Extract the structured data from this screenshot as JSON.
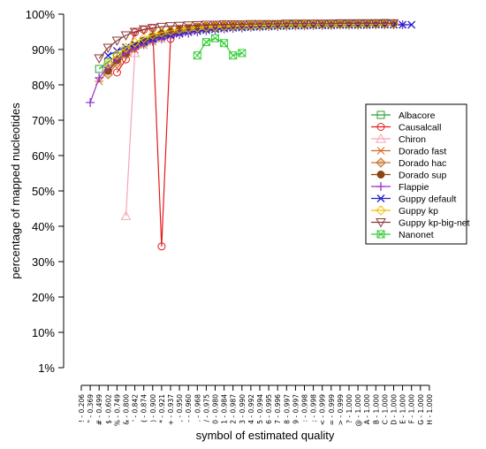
{
  "chart_data": {
    "type": "line",
    "xlabel": "symbol of estimated quality",
    "ylabel": "percentage of mapped nucleotides",
    "yticks": [
      "1%",
      "10%",
      "20%",
      "30%",
      "40%",
      "50%",
      "60%",
      "70%",
      "80%",
      "90%",
      "100%"
    ],
    "ylim": [
      0,
      100
    ],
    "x_categories": [
      "! - 0.206",
      "\" - 0.369",
      "# - 0.499",
      "$ - 0.602",
      "% - 0.749",
      "& - 0.800",
      "' - 0.842",
      "( - 0.874",
      ") - 0.900",
      "* - 0.921",
      "+ - 0.937",
      ", - 0.950",
      "- - 0.960",
      ". - 0.968",
      "/ - 0.975",
      "0 - 0.980",
      "1 - 0.984",
      "2 - 0.987",
      "3 - 0.990",
      "4 - 0.992",
      "5 - 0.994",
      "6 - 0.995",
      "7 - 0.996",
      "8 - 0.997",
      "9 - 0.997",
      ": - 0.998",
      "; - 0.998",
      "< - 0.999",
      "= - 0.999",
      "> - 0.999",
      "? - 1.000",
      "@ - 1.000",
      "A - 1.000",
      "B - 1.000",
      "C - 1.000",
      "D - 1.000",
      "E - 1.000",
      "F - 1.000",
      "G - 1.000",
      "H - 1.000"
    ],
    "legend_position": "right",
    "grid": false,
    "series": [
      {
        "name": "Albacore",
        "color": "#2ca02c",
        "marker": "square",
        "x": [
          3,
          4,
          5,
          6,
          7,
          8,
          9,
          10,
          11,
          12,
          13,
          14,
          15,
          16,
          17,
          18,
          19,
          20,
          21,
          22,
          23,
          24,
          25,
          26,
          27,
          28,
          29,
          30,
          31,
          32,
          33,
          34,
          35
        ],
        "values": [
          84.5,
          86.5,
          88,
          89.5,
          91,
          92,
          93,
          93.8,
          94.5,
          95,
          95.5,
          95.8,
          96,
          96.2,
          96.4,
          96.5,
          96.6,
          96.7,
          96.8,
          96.9,
          97,
          97,
          97.1,
          97.1,
          97.2,
          97.2,
          97.3,
          97.3,
          97.3,
          97.4,
          97.4,
          97.4,
          97.5
        ]
      },
      {
        "name": "Causalcall",
        "color": "#e41a1c",
        "marker": "circle",
        "x": [
          5,
          6,
          7,
          8,
          9,
          10,
          11,
          12,
          13,
          14,
          15,
          16,
          17,
          18,
          19,
          20,
          21,
          22,
          23,
          24,
          25,
          26,
          27,
          28,
          29,
          30,
          31,
          32,
          33,
          34,
          35
        ],
        "values": [
          83.5,
          87.2,
          94.8,
          95.6,
          96,
          34.3,
          93,
          95.9,
          96.2,
          96.5,
          96.7,
          96.8,
          96.9,
          97,
          97,
          97,
          97,
          97.1,
          97.1,
          97.1,
          97.1,
          97.2,
          97.2,
          97.2,
          97.2,
          97.2,
          97.3,
          97.3,
          97.3,
          97.3,
          97.3
        ]
      },
      {
        "name": "Chiron",
        "color": "#f4a6b4",
        "marker": "triangle-up",
        "x": [
          6,
          7
        ],
        "values": [
          42.9,
          89
        ]
      },
      {
        "name": "Dorado fast",
        "color": "#d2691e",
        "marker": "asterisk",
        "x": [
          3,
          4,
          5,
          6,
          7,
          8,
          9,
          10,
          11,
          12,
          13,
          14,
          15,
          16,
          17,
          18,
          19,
          20,
          21,
          22,
          23,
          24,
          25,
          26,
          27,
          28,
          29,
          30,
          31,
          32,
          33,
          34,
          35,
          36
        ],
        "values": [
          81,
          84,
          86.5,
          88.5,
          90,
          91.2,
          92.2,
          93,
          93.8,
          94.4,
          94.9,
          95.3,
          95.6,
          95.9,
          96.1,
          96.3,
          96.4,
          96.5,
          96.6,
          96.7,
          96.8,
          96.8,
          96.9,
          96.9,
          97,
          97,
          97,
          97.1,
          97.1,
          97.1,
          97.1,
          97.2,
          97.2,
          97.2
        ]
      },
      {
        "name": "Dorado hac",
        "color": "#c8742e",
        "marker": "diamond",
        "x": [
          4,
          5,
          6,
          7,
          8,
          9,
          10,
          11,
          12,
          13,
          14,
          15,
          16,
          17,
          18,
          19,
          20,
          21,
          22,
          23,
          24,
          25,
          26,
          27,
          28,
          29,
          30,
          31,
          32,
          33,
          34,
          35,
          36
        ],
        "values": [
          83,
          86,
          88.5,
          90.5,
          92,
          93.2,
          94.2,
          94.9,
          95.4,
          95.8,
          96.1,
          96.3,
          96.5,
          96.6,
          96.7,
          96.8,
          96.9,
          96.9,
          97,
          97,
          97,
          97.1,
          97.1,
          97.1,
          97.1,
          97.2,
          97.2,
          97.2,
          97.2,
          97.2,
          97.3,
          97.3,
          97.3
        ]
      },
      {
        "name": "Dorado sup",
        "color": "#8b4513",
        "marker": "circle-filled",
        "x": [
          4,
          5,
          6,
          7,
          8,
          9,
          10,
          11,
          12,
          13,
          14,
          15,
          16,
          17,
          18,
          19,
          20,
          21,
          22,
          23,
          24,
          25,
          26,
          27,
          28,
          29,
          30,
          31,
          32,
          33,
          34,
          35,
          36
        ],
        "values": [
          84,
          87,
          89,
          91,
          92.5,
          93.6,
          94.5,
          95.1,
          95.6,
          96,
          96.3,
          96.5,
          96.6,
          96.7,
          96.8,
          96.9,
          96.9,
          97,
          97,
          97,
          97.1,
          97.1,
          97.1,
          97.1,
          97.2,
          97.2,
          97.2,
          97.2,
          97.2,
          97.3,
          97.3,
          97.3,
          97.3
        ]
      },
      {
        "name": "Flappie",
        "color": "#9932cc",
        "marker": "plus",
        "x": [
          2,
          3,
          4,
          5,
          6,
          7,
          8,
          9,
          10,
          11,
          12,
          13,
          14,
          15,
          16,
          17,
          18,
          19,
          20,
          21,
          22,
          23,
          24,
          25,
          26,
          27,
          28,
          29,
          30,
          31,
          32,
          33,
          34,
          35,
          36,
          37
        ],
        "values": [
          75,
          82,
          85,
          87.3,
          89,
          90.3,
          91.4,
          92.3,
          93,
          93.6,
          94.2,
          94.6,
          95,
          95.3,
          95.6,
          95.8,
          96,
          96.1,
          96.3,
          96.4,
          96.5,
          96.5,
          96.6,
          96.7,
          96.7,
          96.8,
          96.8,
          96.8,
          96.9,
          96.9,
          96.9,
          97,
          97,
          97,
          97,
          97
        ]
      },
      {
        "name": "Guppy default",
        "color": "#1f1fcc",
        "marker": "x",
        "x": [
          4,
          5,
          6,
          7,
          8,
          9,
          10,
          11,
          12,
          13,
          14,
          15,
          16,
          17,
          18,
          19,
          20,
          21,
          22,
          23,
          24,
          25,
          26,
          27,
          28,
          29,
          30,
          31,
          32,
          33,
          34,
          35,
          36,
          37,
          38
        ],
        "values": [
          88.3,
          89.6,
          90.6,
          91.5,
          92.3,
          93,
          93.6,
          94.1,
          94.5,
          94.9,
          95.2,
          95.5,
          95.7,
          95.9,
          96.1,
          96.2,
          96.3,
          96.4,
          96.5,
          96.6,
          96.6,
          96.7,
          96.7,
          96.8,
          96.8,
          96.8,
          96.9,
          96.9,
          96.9,
          96.9,
          97,
          97,
          97,
          97,
          97
        ]
      },
      {
        "name": "Guppy kp",
        "color": "#f0c000",
        "marker": "diamond-open",
        "x": [
          4,
          5,
          6,
          7,
          8,
          9,
          10,
          11,
          12,
          13,
          14,
          15,
          16,
          17,
          18,
          19,
          20,
          21,
          22,
          23,
          24,
          25,
          26,
          27,
          28,
          29,
          30,
          31,
          32,
          33,
          34,
          35,
          36
        ],
        "values": [
          86,
          88.5,
          90.5,
          92,
          93.2,
          94.1,
          94.8,
          95.3,
          95.7,
          96,
          96.2,
          96.4,
          96.5,
          96.6,
          96.7,
          96.8,
          96.8,
          96.9,
          96.9,
          97,
          97,
          97,
          97,
          97.1,
          97.1,
          97.1,
          97.1,
          97.2,
          97.2,
          97.2,
          97.2,
          97.2,
          97.2
        ]
      },
      {
        "name": "Guppy kp-big-net",
        "color": "#8b3a3a",
        "marker": "triangle-down",
        "x": [
          3,
          4,
          5,
          6,
          7,
          8,
          9,
          10,
          11,
          12,
          13,
          14,
          15,
          16,
          17,
          18,
          19,
          20,
          21,
          22,
          23,
          24,
          25,
          26,
          27,
          28,
          29,
          30,
          31,
          32,
          33,
          34,
          35,
          36
        ],
        "values": [
          87.5,
          90.5,
          92.5,
          94,
          95,
          95.7,
          96.1,
          96.4,
          96.6,
          96.7,
          96.8,
          96.9,
          97,
          97,
          97.1,
          97.1,
          97.1,
          97.2,
          97.2,
          97.2,
          97.2,
          97.3,
          97.3,
          97.3,
          97.3,
          97.3,
          97.3,
          97.4,
          97.4,
          97.4,
          97.4,
          97.4,
          97.4,
          97.4
        ]
      },
      {
        "name": "Nanonet",
        "color": "#33cc33",
        "marker": "square-x",
        "x": [
          14,
          15,
          16,
          17,
          18,
          19
        ],
        "values": [
          88.3,
          92.1,
          93.2,
          91.8,
          88.3,
          89
        ]
      }
    ]
  }
}
